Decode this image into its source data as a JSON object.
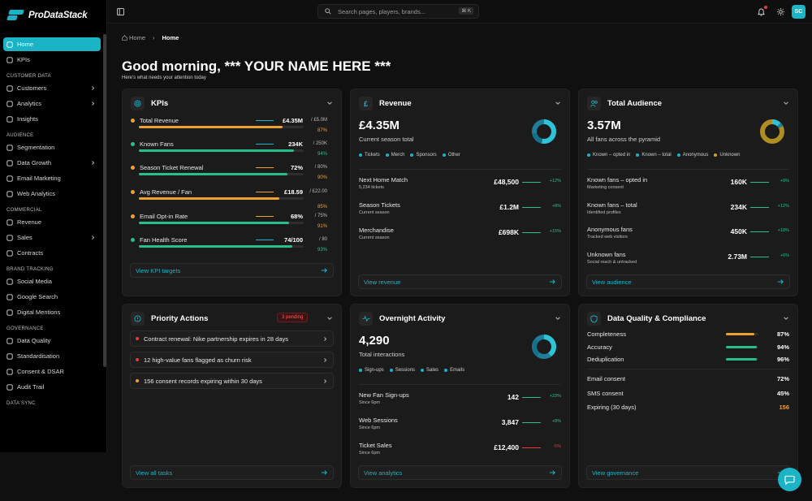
{
  "brand": {
    "name": "ProDataStack",
    "accent": "#1bb3c6"
  },
  "topbar": {
    "search_placeholder": "Search pages, players, brands...",
    "search_shortcut": "⌘ K",
    "avatar": "SC"
  },
  "sidebar": {
    "top": [
      {
        "label": "Home",
        "icon": "home-icon",
        "active": true
      },
      {
        "label": "KPIs",
        "icon": "kpi-icon"
      }
    ],
    "sections": [
      {
        "title": "CUSTOMER DATA",
        "items": [
          {
            "label": "Customers",
            "icon": "users-icon",
            "chevron": true
          },
          {
            "label": "Analytics",
            "icon": "chart-icon",
            "chevron": true
          },
          {
            "label": "Insights",
            "icon": "sparkle-icon"
          }
        ]
      },
      {
        "title": "AUDIENCE",
        "items": [
          {
            "label": "Segmentation",
            "icon": "layers-icon"
          },
          {
            "label": "Data Growth",
            "icon": "trend-icon",
            "chevron": true
          },
          {
            "label": "Email Marketing",
            "icon": "mail-icon"
          },
          {
            "label": "Web Analytics",
            "icon": "monitor-icon"
          }
        ]
      },
      {
        "title": "COMMERCIAL",
        "items": [
          {
            "label": "Revenue",
            "icon": "coins-icon"
          },
          {
            "label": "Sales",
            "icon": "cart-icon",
            "chevron": true
          },
          {
            "label": "Contracts",
            "icon": "file-icon"
          }
        ]
      },
      {
        "title": "BRAND TRACKING",
        "items": [
          {
            "label": "Social Media",
            "icon": "share-icon"
          },
          {
            "label": "Google Search",
            "icon": "search-icon"
          },
          {
            "label": "Digital Mentions",
            "icon": "mention-icon"
          }
        ]
      },
      {
        "title": "GOVERNANCE",
        "items": [
          {
            "label": "Data Quality",
            "icon": "check-icon"
          },
          {
            "label": "Standardisation",
            "icon": "wand-icon"
          },
          {
            "label": "Consent & DSAR",
            "icon": "user-check-icon"
          },
          {
            "label": "Audit Trail",
            "icon": "history-icon"
          }
        ]
      },
      {
        "title": "DATA SYNC",
        "items": []
      }
    ]
  },
  "breadcrumb": {
    "home": "Home",
    "current": "Home"
  },
  "greeting": {
    "title": "Good morning, *** YOUR NAME HERE ***",
    "subtitle": "Here's what needs your attention today"
  },
  "kpis": {
    "title": "KPIs",
    "rows": [
      {
        "label": "Total Revenue",
        "value": "£4.35M",
        "target": "/ £5.0M",
        "pct": "87%",
        "fill": 0.87,
        "color": "#f0a030",
        "spark": "#1bb3c6"
      },
      {
        "label": "Known Fans",
        "value": "234K",
        "target": "/ 250K",
        "pct": "94%",
        "fill": 0.94,
        "color": "#27c08a",
        "spark": "#1bb3c6"
      },
      {
        "label": "Season Ticket Renewal",
        "value": "72%",
        "target": "/ 80%",
        "pct": "90%",
        "fill": 0.9,
        "color": "#f0a030",
        "spark": "#f0a030",
        "barcolor": "#27c08a"
      },
      {
        "label": "Avg Revenue / Fan",
        "value": "£18.59",
        "target": "/ £22.00",
        "pct": "85%",
        "fill": 0.85,
        "color": "#f0a030",
        "spark": "#f0a030"
      },
      {
        "label": "Email Opt-in Rate",
        "value": "68%",
        "target": "/ 75%",
        "pct": "91%",
        "fill": 0.91,
        "color": "#f0a030",
        "spark": "#f0a030",
        "barcolor": "#27c08a"
      },
      {
        "label": "Fan Health Score",
        "value": "74/100",
        "target": "/ 80",
        "pct": "93%",
        "fill": 0.93,
        "color": "#27c08a",
        "spark": "#1bb3c6"
      }
    ],
    "footer": "View KPI targets"
  },
  "revenue": {
    "title": "Revenue",
    "value": "£4.35M",
    "sub": "Current season total",
    "legend": [
      {
        "label": "Tickets",
        "color": "#1bb3c6"
      },
      {
        "label": "Merch",
        "color": "#1bb3c6"
      },
      {
        "label": "Sponsors",
        "color": "#1bb3c6"
      },
      {
        "label": "Other",
        "color": "#1bb3c6"
      }
    ],
    "rows": [
      {
        "title": "Next Home Match",
        "sub": "5,234 tickets",
        "value": "£48,500",
        "delta": "+12%",
        "up": true
      },
      {
        "title": "Season Tickets",
        "sub": "Current season",
        "value": "£1.2M",
        "delta": "+8%",
        "up": true
      },
      {
        "title": "Merchandise",
        "sub": "Current season",
        "value": "£698K",
        "delta": "+15%",
        "up": true
      }
    ],
    "footer": "View revenue"
  },
  "audience": {
    "title": "Total Audience",
    "value": "3.57M",
    "sub": "All fans across the pyramid",
    "legend": [
      {
        "label": "Known – opted in",
        "color": "#1bb3c6"
      },
      {
        "label": "Known – total",
        "color": "#1bb3c6"
      },
      {
        "label": "Anonymous",
        "color": "#1bb3c6"
      },
      {
        "label": "Unknown",
        "color": "#c9a227"
      }
    ],
    "rows": [
      {
        "title": "Known fans – opted in",
        "sub": "Marketing consent",
        "value": "160K",
        "delta": "+9%",
        "up": true
      },
      {
        "title": "Known fans – total",
        "sub": "Identified profiles",
        "value": "234K",
        "delta": "+12%",
        "up": true
      },
      {
        "title": "Anonymous fans",
        "sub": "Tracked web visitors",
        "value": "450K",
        "delta": "+18%",
        "up": true
      },
      {
        "title": "Unknown fans",
        "sub": "Social reach & untracked",
        "value": "2.73M",
        "delta": "+6%",
        "up": true
      }
    ],
    "footer": "View audience"
  },
  "priority": {
    "title": "Priority Actions",
    "badge": "3 pending",
    "tasks": [
      {
        "label": "Contract renewal: Nike partnership expires in 28 days",
        "color": "#e53b3b"
      },
      {
        "label": "12 high-value fans flagged as churn risk",
        "color": "#e53b3b"
      },
      {
        "label": "156 consent records expiring within 30 days",
        "color": "#f0a030"
      }
    ],
    "footer": "View all tasks"
  },
  "overnight": {
    "title": "Overnight Activity",
    "value": "4,290",
    "sub": "Total interactions",
    "legend": [
      {
        "label": "Sign-ups",
        "color": "#1bb3c6"
      },
      {
        "label": "Sessions",
        "color": "#1bb3c6"
      },
      {
        "label": "Sales",
        "color": "#1bb3c6"
      },
      {
        "label": "Emails",
        "color": "#1bb3c6"
      }
    ],
    "rows": [
      {
        "title": "New Fan Sign-ups",
        "sub": "Since 6pm",
        "value": "142",
        "delta": "+23%",
        "up": true
      },
      {
        "title": "Web Sessions",
        "sub": "Since 6pm",
        "value": "3,847",
        "delta": "+8%",
        "up": true
      },
      {
        "title": "Ticket Sales",
        "sub": "Since 6pm",
        "value": "£12,400",
        "delta": "-5%",
        "up": false
      }
    ],
    "footer": "View analytics"
  },
  "dq": {
    "title": "Data Quality & Compliance",
    "bars": [
      {
        "label": "Completeness",
        "value": "87%",
        "fill": 0.87,
        "color": "#f0a030"
      },
      {
        "label": "Accuracy",
        "value": "94%",
        "fill": 0.94,
        "color": "#27c08a"
      },
      {
        "label": "Deduplication",
        "value": "96%",
        "fill": 0.96,
        "color": "#27c08a"
      }
    ],
    "stats": [
      {
        "label": "Email consent",
        "value": "72%",
        "color": "#ffffff"
      },
      {
        "label": "SMS consent",
        "value": "45%",
        "color": "#ffffff"
      },
      {
        "label": "Expiring (30 days)",
        "value": "156",
        "color": "#f0a030"
      }
    ],
    "footer": "View governance"
  }
}
